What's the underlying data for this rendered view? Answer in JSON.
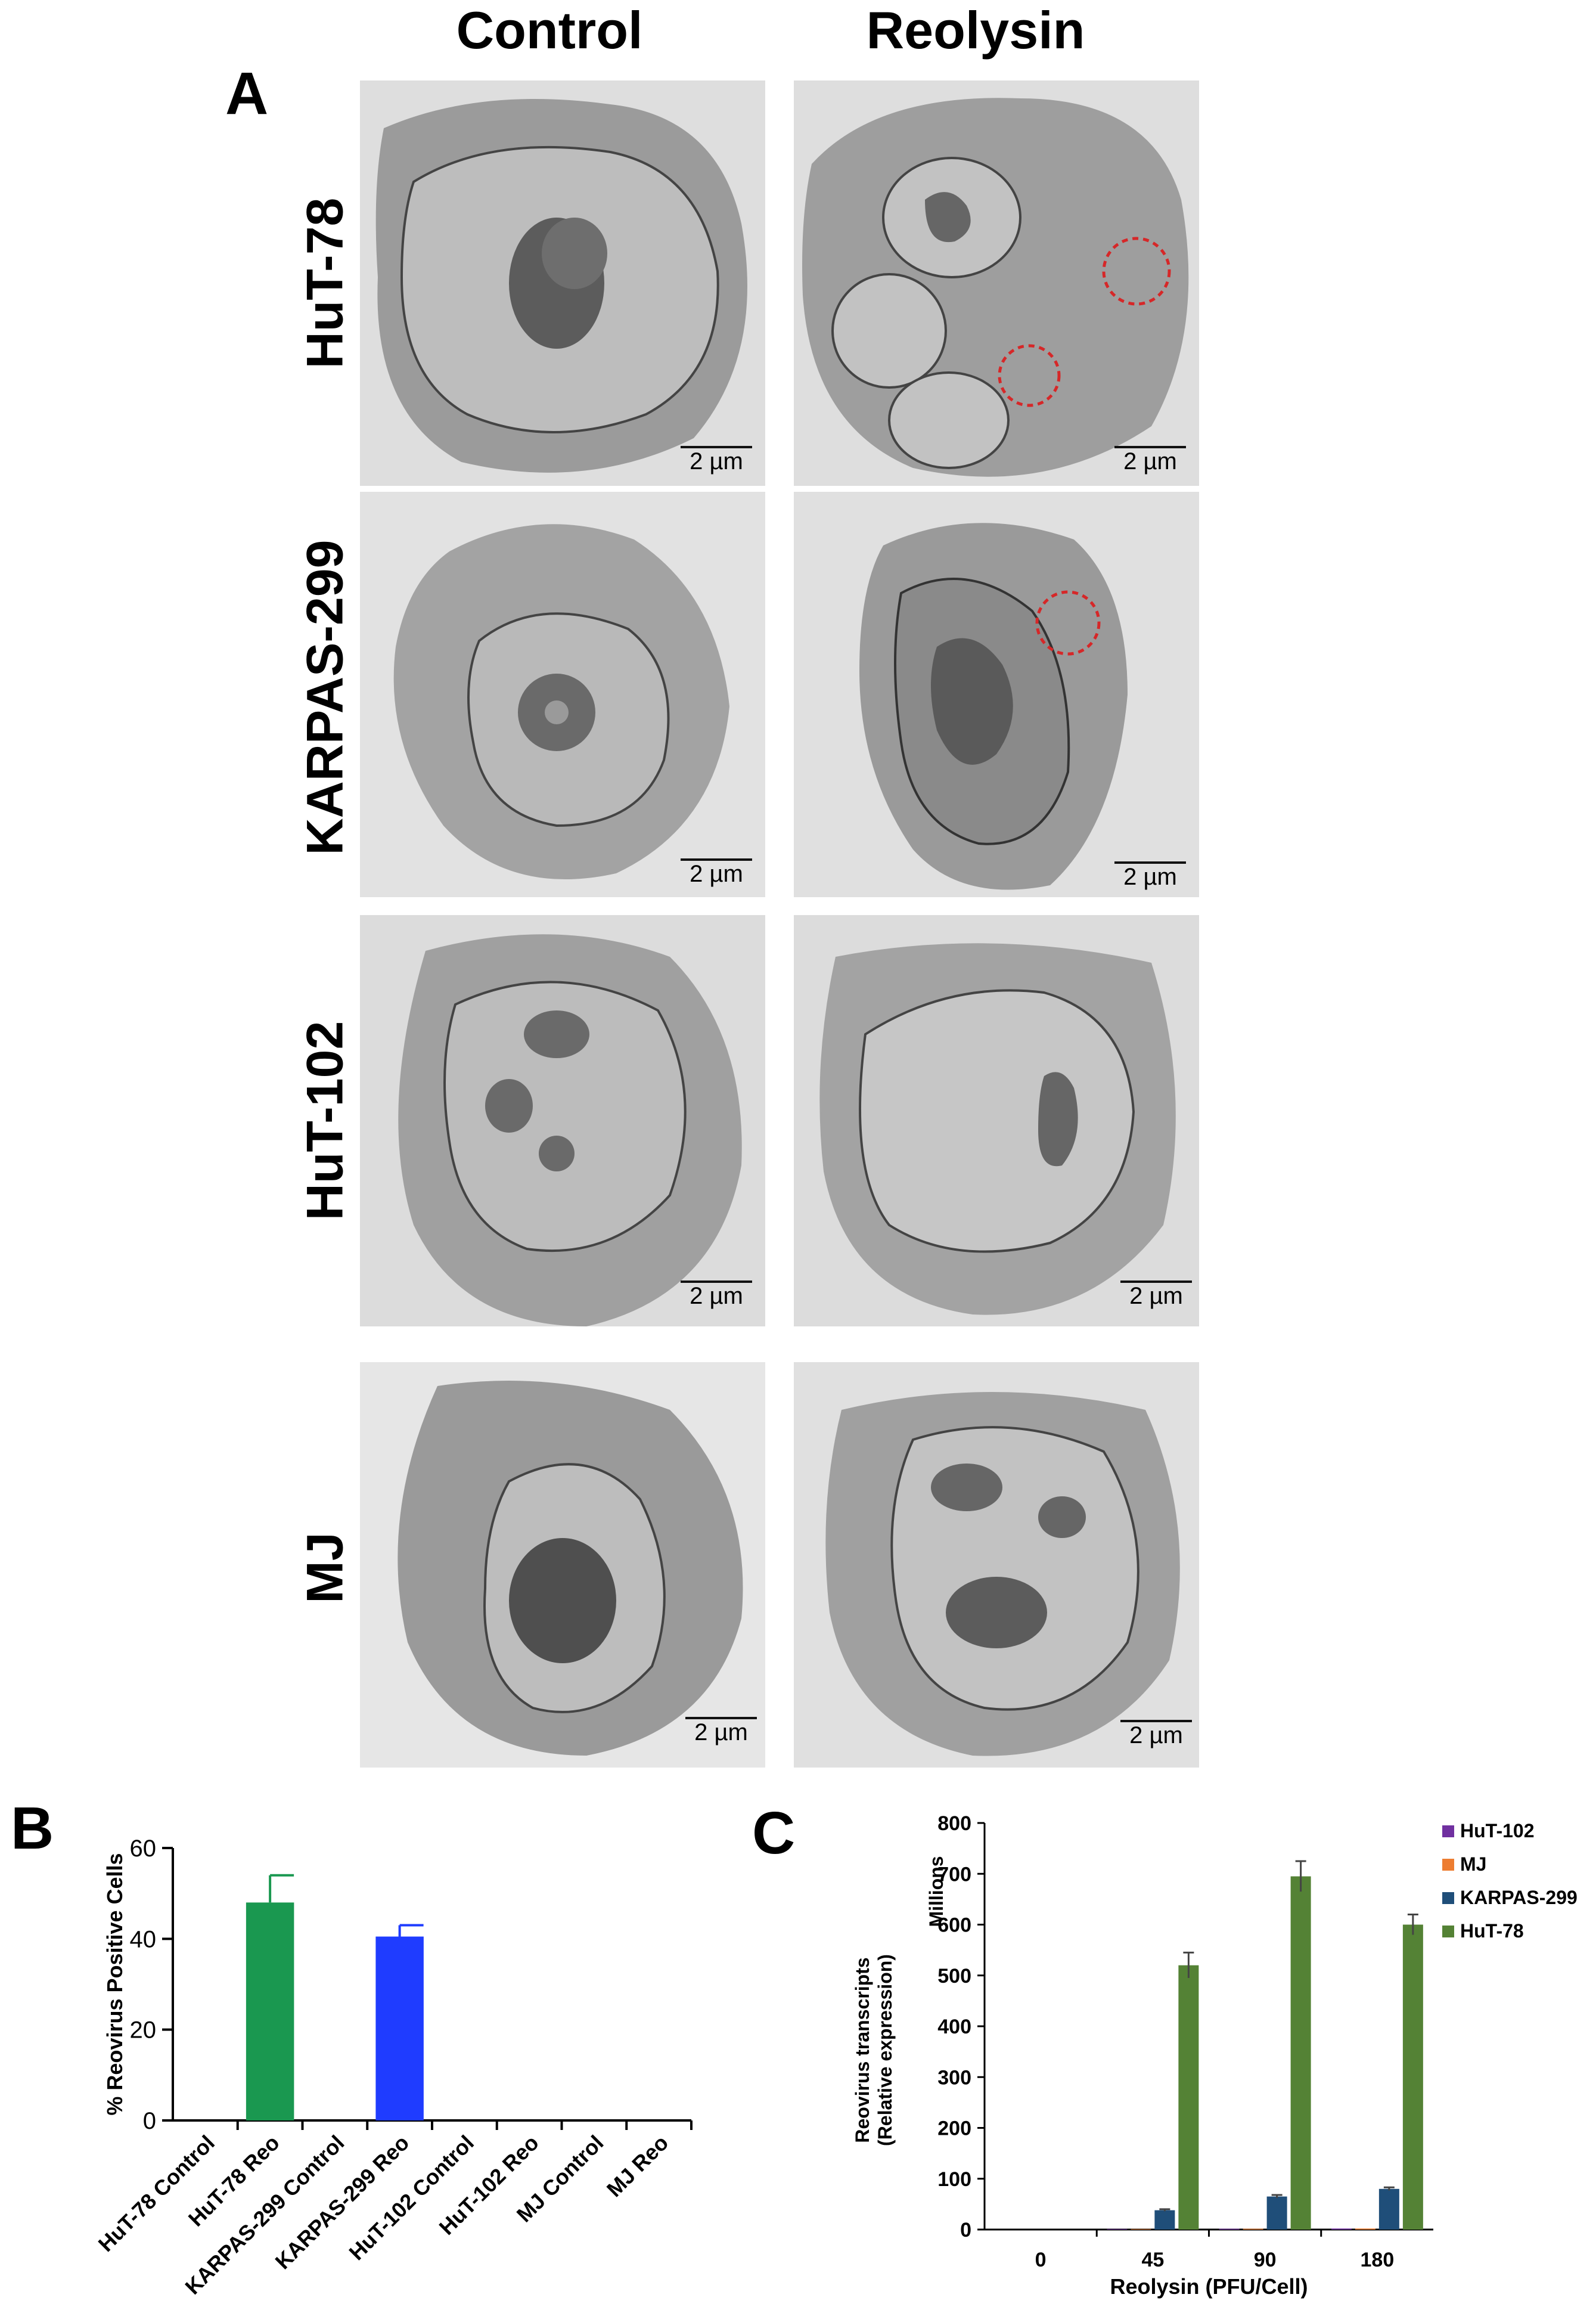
{
  "panel_a": {
    "letter": "A",
    "columns": [
      "Control",
      "Reolysin"
    ],
    "rows": [
      "HuT-78",
      "KARPAS-299",
      "HuT-102",
      "MJ"
    ],
    "scale_label": "2 µm"
  },
  "chart_data": [
    {
      "type": "bar",
      "panel": "B",
      "ylabel": "% Reovirus Positive Cells",
      "xlabel": "",
      "ylim": [
        0,
        60
      ],
      "yticks": [
        0,
        20,
        40,
        60
      ],
      "categories": [
        "HuT-78 Control",
        "HuT-78  Reo",
        "KARPAS-299 Control",
        "KARPAS-299  Reo",
        "HuT-102 Control",
        "HuT-102  Reo",
        "MJ Control",
        "MJ  Reo"
      ],
      "values": [
        0,
        48,
        0,
        40.5,
        0,
        0,
        0,
        0
      ],
      "errors": [
        0,
        6,
        0,
        2.5,
        0,
        0,
        0,
        0
      ],
      "colors": [
        "#1a9850",
        "#1a9850",
        "#1f3cff",
        "#1f3cff",
        "#1a9850",
        "#1a9850",
        "#1f3cff",
        "#1f3cff"
      ],
      "grid": false
    },
    {
      "type": "bar",
      "panel": "C",
      "ylabel": "Reovirus transcripts",
      "ylabel2": "(Relative expression)",
      "units_label": "Millions",
      "xlabel": "Reolysin (PFU/Cell)",
      "ylim": [
        0,
        800
      ],
      "yticks": [
        0,
        100,
        200,
        300,
        400,
        500,
        600,
        700,
        800
      ],
      "categories": [
        "0",
        "45",
        "90",
        "180"
      ],
      "series": [
        {
          "name": "HuT-102",
          "color": "#7030a0",
          "values": [
            0,
            1,
            1.5,
            2
          ],
          "errors": [
            0,
            0,
            0,
            0
          ]
        },
        {
          "name": "MJ",
          "color": "#ed7d31",
          "values": [
            0,
            1,
            1.5,
            2
          ],
          "errors": [
            0,
            0,
            0,
            0
          ]
        },
        {
          "name": "KARPAS-299",
          "color": "#1f4e79",
          "values": [
            0,
            38,
            65,
            80
          ],
          "errors": [
            0,
            2,
            3,
            3
          ]
        },
        {
          "name": "HuT-78",
          "color": "#548235",
          "values": [
            0,
            520,
            695,
            600
          ],
          "errors": [
            0,
            25,
            30,
            20
          ]
        }
      ],
      "legend": "top-right",
      "grid": false
    }
  ]
}
